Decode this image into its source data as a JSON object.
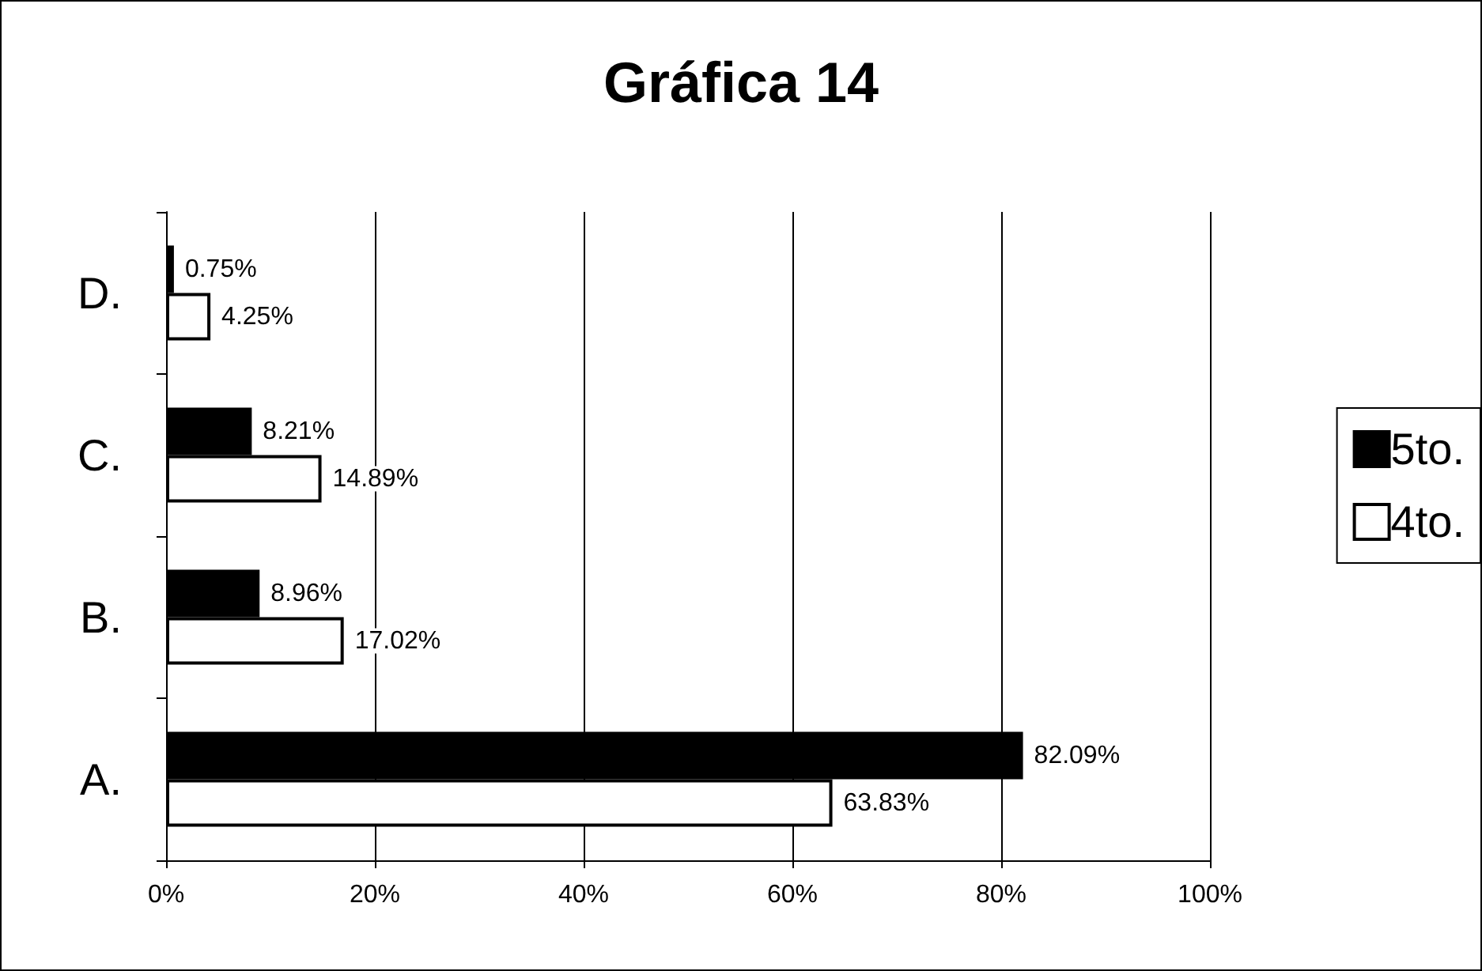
{
  "chart_data": {
    "type": "bar",
    "title": "Gráfica 14",
    "orientation": "horizontal",
    "categories": [
      "D.",
      "C.",
      "B.",
      "A."
    ],
    "series": [
      {
        "name": "5to.",
        "color": "#000000",
        "values": [
          0.75,
          8.21,
          8.96,
          82.09
        ],
        "value_labels": [
          "0.75%",
          "8.21%",
          "8.96%",
          "82.09%"
        ]
      },
      {
        "name": "4to.",
        "color": "#ffffff",
        "values": [
          4.25,
          14.89,
          17.02,
          63.83
        ],
        "value_labels": [
          "4.25%",
          "14.89%",
          "17.02%",
          "63.83%"
        ]
      }
    ],
    "xlim": [
      0,
      100
    ],
    "xticks": [
      {
        "value": 0,
        "label": "0%"
      },
      {
        "value": 20,
        "label": "20%"
      },
      {
        "value": 40,
        "label": "40%"
      },
      {
        "value": 60,
        "label": "60%"
      },
      {
        "value": 80,
        "label": "80%"
      },
      {
        "value": 100,
        "label": "100%"
      }
    ],
    "grid": "x",
    "legend": "right"
  }
}
